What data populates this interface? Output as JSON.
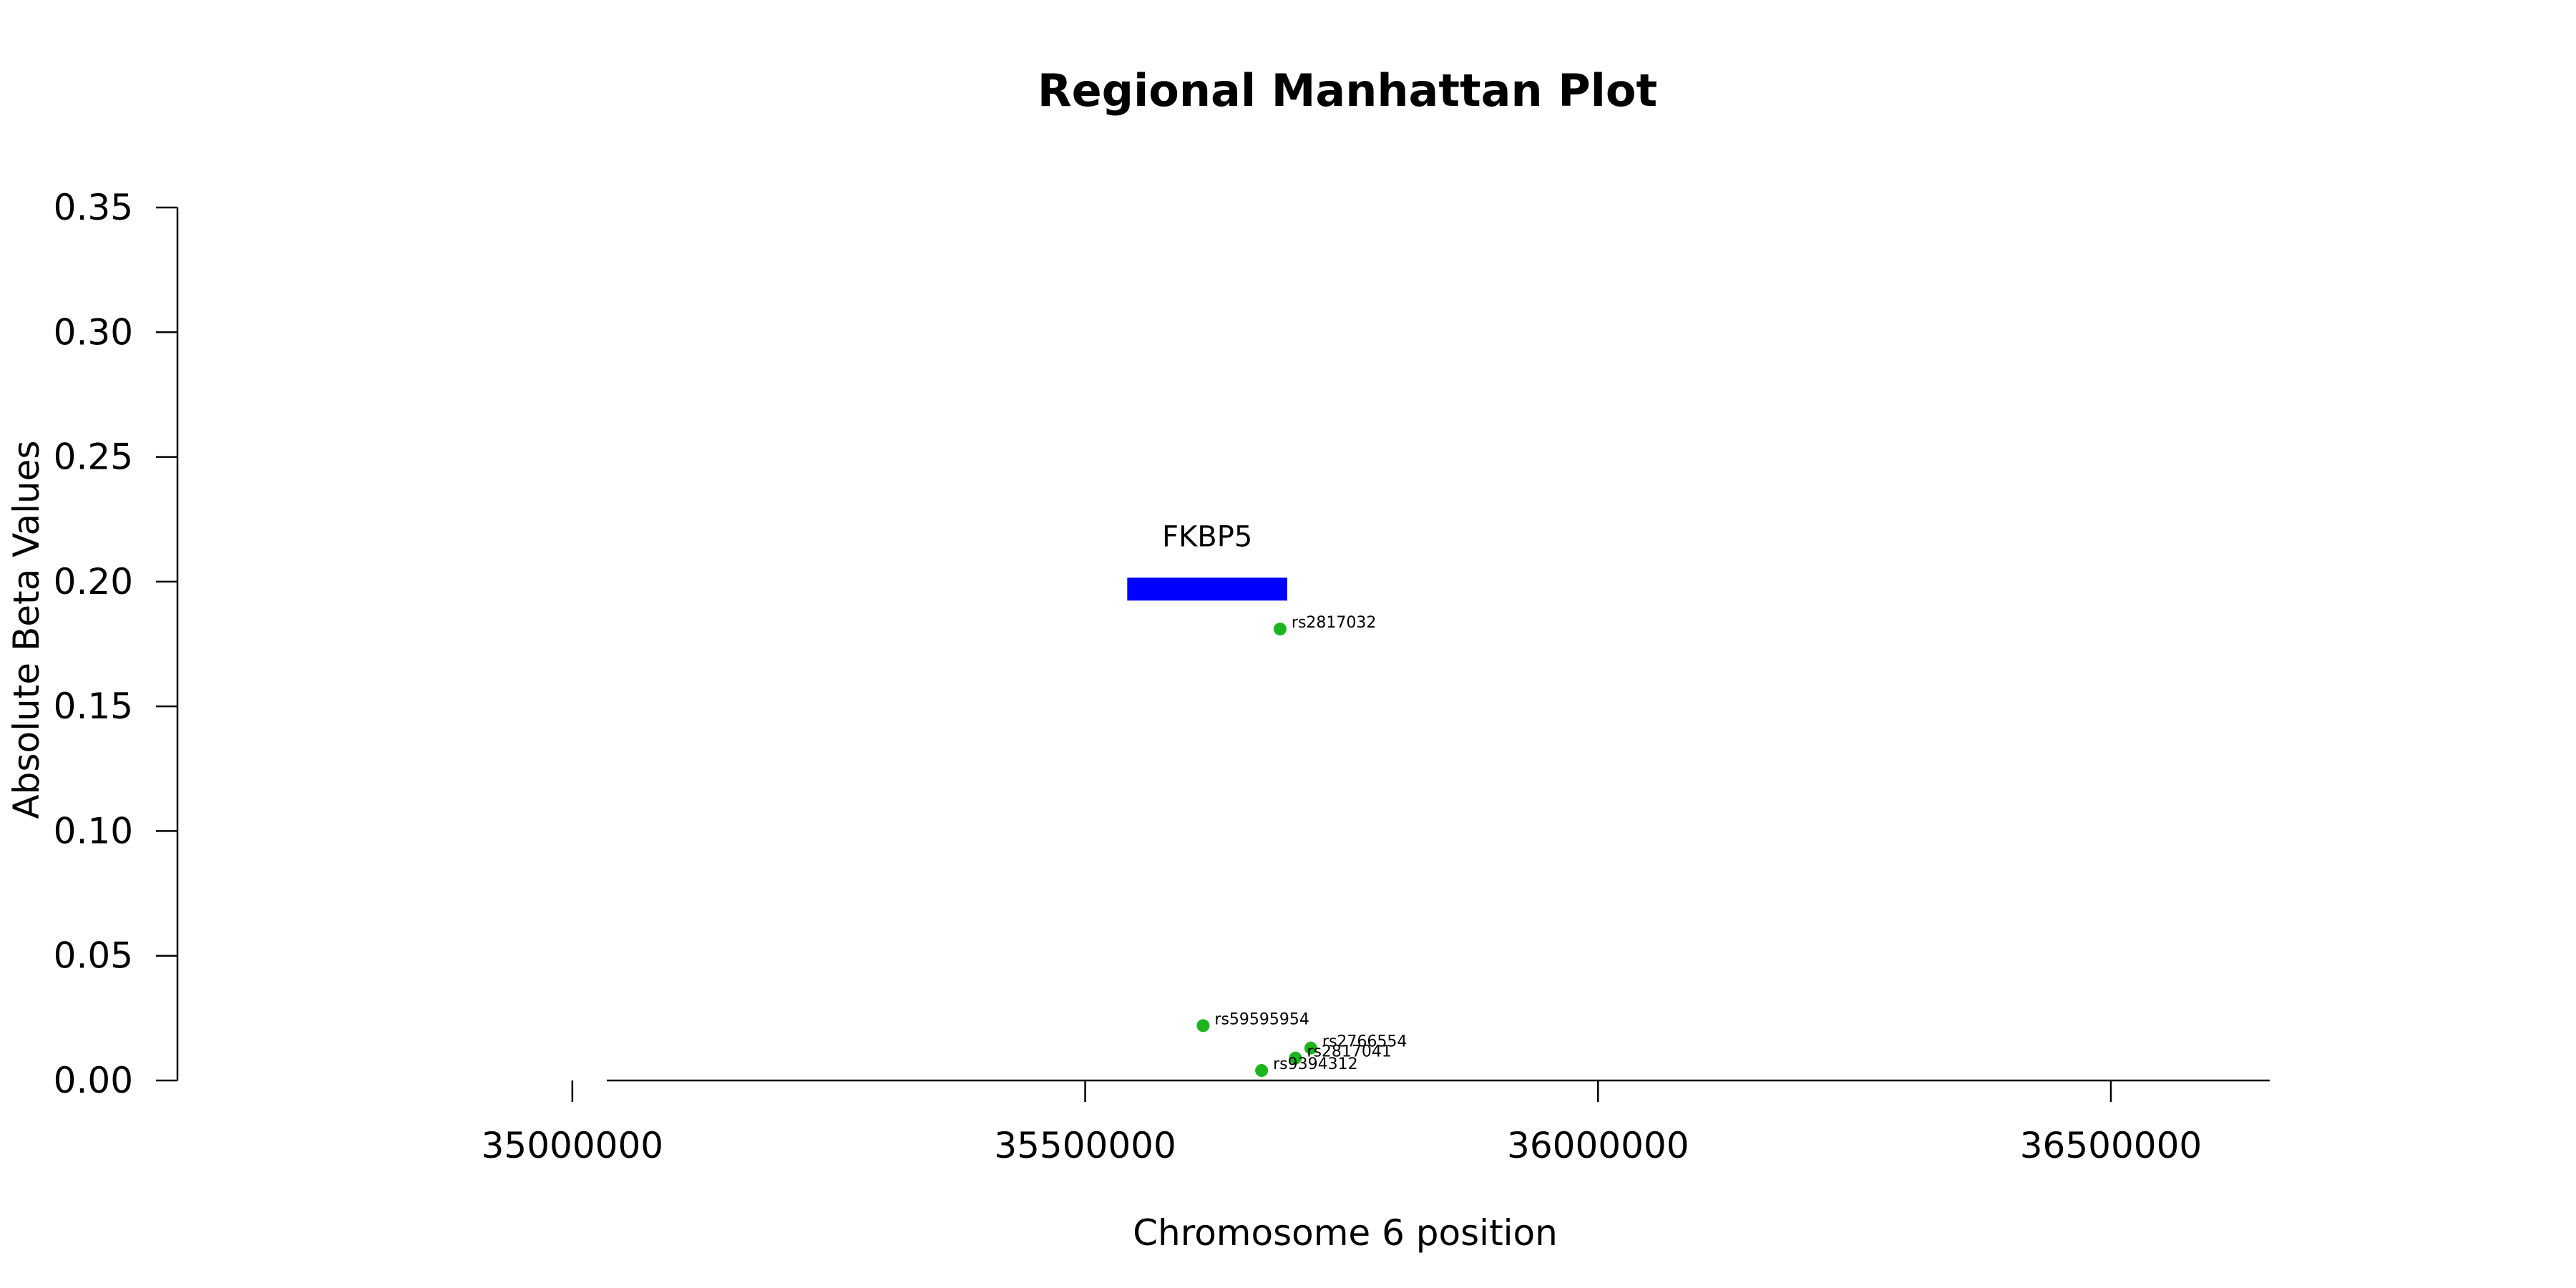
{
  "chart_data": {
    "type": "scatter",
    "title": "Regional Manhattan Plot",
    "xlabel": "Chromosome 6 position",
    "ylabel": "Absolute Beta Values",
    "x_ticks": [
      35000000,
      35500000,
      36000000,
      36500000
    ],
    "x_tick_labels": [
      "35000000",
      "35500000",
      "36000000",
      "36500000"
    ],
    "y_ticks": [
      0,
      0.05,
      0.1,
      0.15,
      0.2,
      0.25,
      0.3,
      0.35
    ],
    "y_tick_labels": [
      "0.00",
      "0.05",
      "0.10",
      "0.15",
      "0.20",
      "0.25",
      "0.30",
      "0.35"
    ],
    "xlim": [
      34615000,
      36800000
    ],
    "ylim": [
      0,
      0.35
    ],
    "grid": false,
    "point_color": "#1db51d",
    "gene_color": "#0000ff",
    "genes": [
      {
        "name": "FKBP5",
        "start": 35541000,
        "end": 35697000,
        "y": 0.197
      }
    ],
    "points": [
      {
        "x": 35690000,
        "y": 0.181,
        "label": "rs2817032"
      },
      {
        "x": 35615000,
        "y": 0.022,
        "label": "rs59595954"
      },
      {
        "x": 35720000,
        "y": 0.013,
        "label": "rs2766554"
      },
      {
        "x": 35705000,
        "y": 0.009,
        "label": "rs2817041"
      },
      {
        "x": 35672000,
        "y": 0.004,
        "label": "rs9394312"
      }
    ]
  }
}
